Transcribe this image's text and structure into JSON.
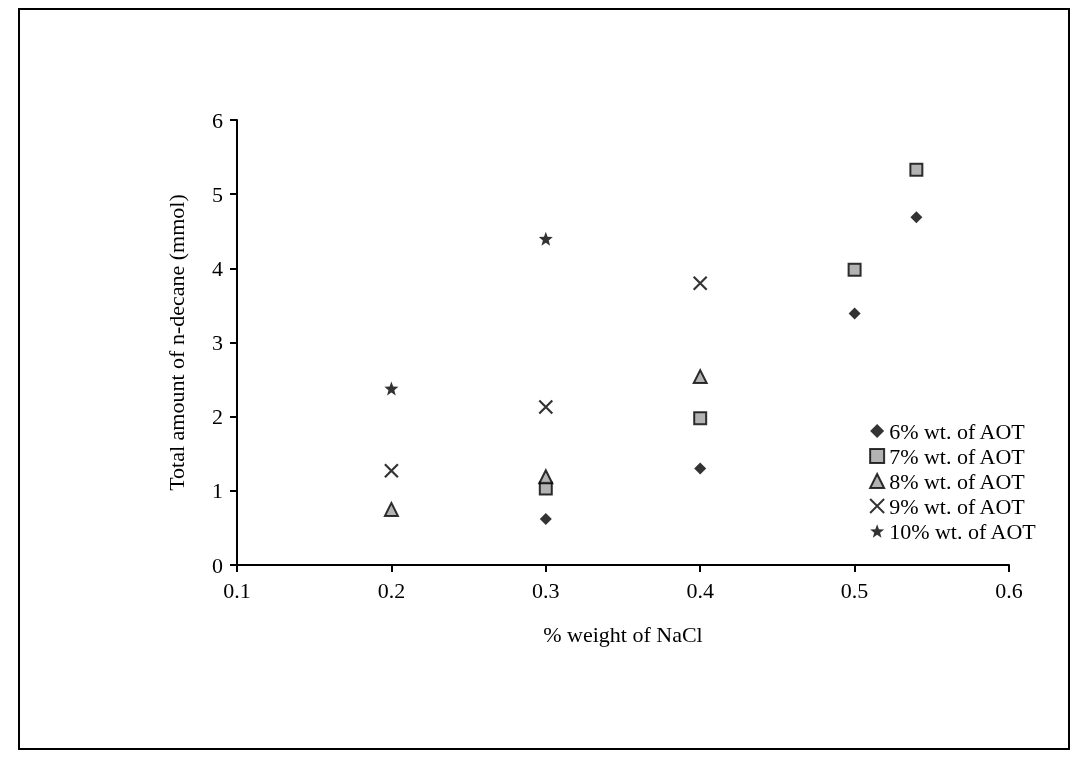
{
  "chart_data": {
    "type": "scatter",
    "xlabel": "% weight of NaCl",
    "ylabel": "Total amount of n-decane (mmol)",
    "xlim": [
      0.1,
      0.6
    ],
    "xticks": [
      0.1,
      0.2,
      0.3,
      0.4,
      0.5,
      0.6
    ],
    "ylim": [
      0,
      6
    ],
    "yticks": [
      0,
      1,
      2,
      3,
      4,
      5,
      6
    ],
    "grid": false,
    "legend": "right",
    "series": [
      {
        "name": "6% wt. of AOT",
        "color": "#000000",
        "marker": "diamond",
        "x": [
          0.3,
          0.4,
          0.5,
          0.54
        ],
        "values": [
          0.62,
          1.3,
          3.39,
          4.69
        ]
      },
      {
        "name": "7% wt. of AOT",
        "color": "#a0a0a0",
        "marker": "square",
        "x": [
          0.3,
          0.4,
          0.5,
          0.54
        ],
        "values": [
          1.03,
          1.98,
          3.98,
          5.33
        ]
      },
      {
        "name": "8% wt. of AOT",
        "color": "#a0a0a0",
        "marker": "triangle",
        "x": [
          0.2,
          0.3,
          0.4
        ],
        "values": [
          0.75,
          1.19,
          2.54
        ]
      },
      {
        "name": "9% wt. of AOT",
        "color": "#000000",
        "marker": "cross",
        "x": [
          0.2,
          0.3,
          0.4
        ],
        "values": [
          1.27,
          2.13,
          3.8
        ]
      },
      {
        "name": "10% wt. of AOT",
        "color": "#000000",
        "marker": "star",
        "x": [
          0.2,
          0.3
        ],
        "values": [
          2.38,
          4.4
        ]
      }
    ]
  }
}
